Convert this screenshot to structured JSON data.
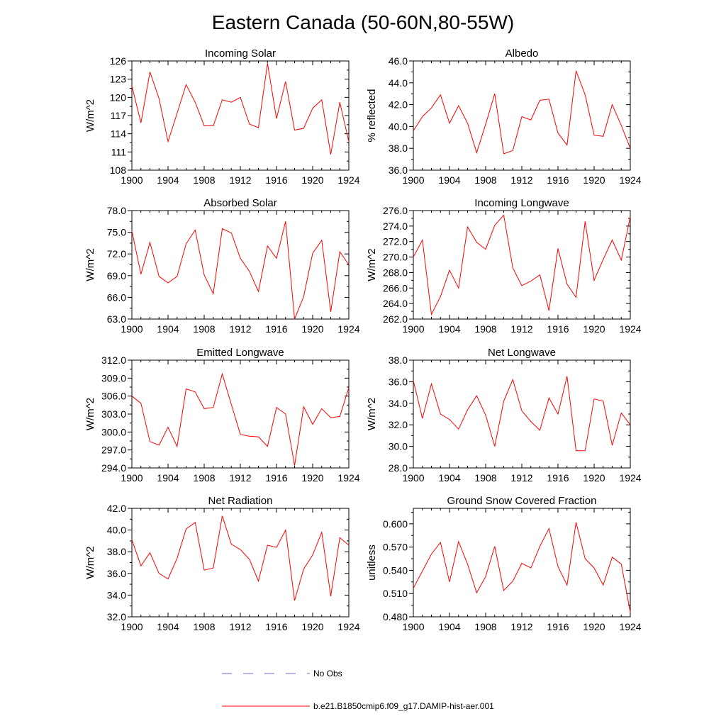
{
  "figure": {
    "title": "Eastern Canada (50-60N,80-55W)"
  },
  "legend": {
    "obs_label": "No Obs",
    "obs_color": "#6b6bd6",
    "model_label": "b.e21.B1850cmip6.f09_g17.DAMIP-hist-aer.001",
    "model_color": "#ff0000"
  },
  "chart_data": [
    {
      "type": "line",
      "title": "Incoming Solar",
      "xlabel": "",
      "ylabel": "W/m^2",
      "xlim": [
        1900,
        1924
      ],
      "ylim": [
        108,
        126
      ],
      "xticks": [
        "1900",
        "1904",
        "1908",
        "1912",
        "1916",
        "1920",
        "1924"
      ],
      "yticks": [
        "108",
        "111",
        "114",
        "117",
        "120",
        "123",
        "126"
      ],
      "x": [
        1900,
        1901,
        1902,
        1903,
        1904,
        1905,
        1906,
        1907,
        1908,
        1909,
        1910,
        1911,
        1912,
        1913,
        1914,
        1915,
        1916,
        1917,
        1918,
        1919,
        1920,
        1921,
        1922,
        1923,
        1924
      ],
      "series": [
        {
          "values": [
            121.9,
            115.8,
            124.2,
            119.8,
            112.7,
            117.4,
            122.1,
            119.2,
            115.3,
            115.3,
            119.6,
            119.2,
            120.0,
            115.6,
            115.0,
            125.6,
            116.5,
            122.6,
            114.6,
            114.9,
            118.2,
            119.6,
            110.6,
            119.2,
            112.7
          ]
        }
      ]
    },
    {
      "type": "line",
      "title": "Albedo",
      "xlabel": "",
      "ylabel": "% reflected",
      "xlim": [
        1900,
        1924
      ],
      "ylim": [
        36,
        46
      ],
      "xticks": [
        "1900",
        "1904",
        "1908",
        "1912",
        "1916",
        "1920",
        "1924"
      ],
      "yticks": [
        "36.0",
        "38.0",
        "40.0",
        "42.0",
        "44.0",
        "46.0"
      ],
      "x": [
        1900,
        1901,
        1902,
        1903,
        1904,
        1905,
        1906,
        1907,
        1908,
        1909,
        1910,
        1911,
        1912,
        1913,
        1914,
        1915,
        1916,
        1917,
        1918,
        1919,
        1920,
        1921,
        1922,
        1923,
        1924
      ],
      "series": [
        {
          "values": [
            39.6,
            40.9,
            41.7,
            42.9,
            40.3,
            41.9,
            40.3,
            37.6,
            40.2,
            43.0,
            37.5,
            37.8,
            40.9,
            40.6,
            42.4,
            42.5,
            39.4,
            38.3,
            45.1,
            42.9,
            39.2,
            39.1,
            42.0,
            40.1,
            38.0
          ]
        }
      ]
    },
    {
      "type": "line",
      "title": "Absorbed Solar",
      "xlabel": "",
      "ylabel": "W/m^2",
      "xlim": [
        1900,
        1924
      ],
      "ylim": [
        63,
        78
      ],
      "xticks": [
        "1900",
        "1904",
        "1908",
        "1912",
        "1916",
        "1920",
        "1924"
      ],
      "yticks": [
        "63.0",
        "66.0",
        "69.0",
        "72.0",
        "75.0",
        "78.0"
      ],
      "x": [
        1900,
        1901,
        1902,
        1903,
        1904,
        1905,
        1906,
        1907,
        1908,
        1909,
        1910,
        1911,
        1912,
        1913,
        1914,
        1915,
        1916,
        1917,
        1918,
        1919,
        1920,
        1921,
        1922,
        1923,
        1924
      ],
      "series": [
        {
          "values": [
            75.2,
            69.2,
            73.6,
            68.9,
            68.0,
            68.9,
            73.4,
            75.3,
            69.1,
            66.5,
            75.5,
            74.9,
            71.4,
            69.6,
            66.8,
            73.1,
            71.4,
            76.5,
            63.0,
            66.1,
            72.1,
            73.9,
            64.0,
            72.3,
            70.5
          ]
        }
      ]
    },
    {
      "type": "line",
      "title": "Incoming Longwave",
      "xlabel": "",
      "ylabel": "W/m^2",
      "xlim": [
        1900,
        1924
      ],
      "ylim": [
        262,
        276
      ],
      "xticks": [
        "1900",
        "1904",
        "1908",
        "1912",
        "1916",
        "1920",
        "1924"
      ],
      "yticks": [
        "262.0",
        "264.0",
        "266.0",
        "268.0",
        "270.0",
        "272.0",
        "274.0",
        "276.0"
      ],
      "x": [
        1900,
        1901,
        1902,
        1903,
        1904,
        1905,
        1906,
        1907,
        1908,
        1909,
        1910,
        1911,
        1912,
        1913,
        1914,
        1915,
        1916,
        1917,
        1918,
        1919,
        1920,
        1921,
        1922,
        1923,
        1924
      ],
      "series": [
        {
          "values": [
            270.0,
            272.2,
            262.6,
            264.9,
            268.3,
            266.0,
            273.9,
            271.9,
            271.0,
            274.1,
            275.4,
            268.6,
            266.3,
            266.9,
            267.7,
            263.1,
            271.1,
            266.5,
            264.8,
            274.6,
            267.0,
            269.7,
            272.2,
            269.6,
            275.2
          ]
        }
      ]
    },
    {
      "type": "line",
      "title": "Emitted Longwave",
      "xlabel": "",
      "ylabel": "W/m^2",
      "xlim": [
        1900,
        1924
      ],
      "ylim": [
        294,
        312
      ],
      "xticks": [
        "1900",
        "1904",
        "1908",
        "1912",
        "1916",
        "1920",
        "1924"
      ],
      "yticks": [
        "294.0",
        "297.0",
        "300.0",
        "303.0",
        "306.0",
        "309.0",
        "312.0"
      ],
      "x": [
        1900,
        1901,
        1902,
        1903,
        1904,
        1905,
        1906,
        1907,
        1908,
        1909,
        1910,
        1911,
        1912,
        1913,
        1914,
        1915,
        1916,
        1917,
        1918,
        1919,
        1920,
        1921,
        1922,
        1923,
        1924
      ],
      "series": [
        {
          "values": [
            306.0,
            304.8,
            298.4,
            297.8,
            300.8,
            297.6,
            307.2,
            306.7,
            303.9,
            304.1,
            309.7,
            304.6,
            299.6,
            299.3,
            299.2,
            297.6,
            304.1,
            303.0,
            294.4,
            304.2,
            301.3,
            303.9,
            302.4,
            302.6,
            307.4
          ]
        }
      ]
    },
    {
      "type": "line",
      "title": "Net Longwave",
      "xlabel": "",
      "ylabel": "W/m^2",
      "xlim": [
        1900,
        1924
      ],
      "ylim": [
        28,
        38
      ],
      "xticks": [
        "1900",
        "1904",
        "1908",
        "1912",
        "1916",
        "1920",
        "1924"
      ],
      "yticks": [
        "28.0",
        "30.0",
        "32.0",
        "34.0",
        "36.0",
        "38.0"
      ],
      "x": [
        1900,
        1901,
        1902,
        1903,
        1904,
        1905,
        1906,
        1907,
        1908,
        1909,
        1910,
        1911,
        1912,
        1913,
        1914,
        1915,
        1916,
        1917,
        1918,
        1919,
        1920,
        1921,
        1922,
        1923,
        1924
      ],
      "series": [
        {
          "values": [
            36.1,
            32.6,
            35.8,
            33.0,
            32.5,
            31.6,
            33.4,
            34.7,
            32.9,
            30.0,
            34.2,
            36.2,
            33.3,
            32.3,
            31.5,
            34.5,
            33.0,
            36.5,
            29.6,
            29.6,
            34.4,
            34.2,
            30.1,
            33.1,
            32.0
          ]
        }
      ]
    },
    {
      "type": "line",
      "title": "Net Radiation",
      "xlabel": "",
      "ylabel": "W/m^2",
      "xlim": [
        1900,
        1924
      ],
      "ylim": [
        32,
        42
      ],
      "xticks": [
        "1900",
        "1904",
        "1908",
        "1912",
        "1916",
        "1920",
        "1924"
      ],
      "yticks": [
        "32.0",
        "34.0",
        "36.0",
        "38.0",
        "40.0",
        "42.0"
      ],
      "x": [
        1900,
        1901,
        1902,
        1903,
        1904,
        1905,
        1906,
        1907,
        1908,
        1909,
        1910,
        1911,
        1912,
        1913,
        1914,
        1915,
        1916,
        1917,
        1918,
        1919,
        1920,
        1921,
        1922,
        1923,
        1924
      ],
      "series": [
        {
          "values": [
            39.1,
            36.7,
            37.9,
            36.0,
            35.5,
            37.4,
            40.1,
            40.7,
            36.3,
            36.5,
            41.3,
            38.7,
            38.2,
            37.3,
            35.3,
            38.6,
            38.4,
            40.0,
            33.5,
            36.4,
            37.7,
            39.8,
            33.9,
            39.3,
            38.6
          ]
        }
      ]
    },
    {
      "type": "line",
      "title": "Ground Snow Covered Fraction",
      "xlabel": "",
      "ylabel": "unitless",
      "xlim": [
        1900,
        1924
      ],
      "ylim": [
        0.48,
        0.62
      ],
      "xticks": [
        "1900",
        "1904",
        "1908",
        "1912",
        "1916",
        "1920",
        "1924"
      ],
      "yticks": [
        "0.480",
        "0.510",
        "0.540",
        "0.570",
        "0.600"
      ],
      "x": [
        1900,
        1901,
        1902,
        1903,
        1904,
        1905,
        1906,
        1907,
        1908,
        1909,
        1910,
        1911,
        1912,
        1913,
        1914,
        1915,
        1916,
        1917,
        1918,
        1919,
        1920,
        1921,
        1922,
        1923,
        1924
      ],
      "series": [
        {
          "values": [
            0.517,
            0.539,
            0.561,
            0.576,
            0.525,
            0.577,
            0.548,
            0.511,
            0.532,
            0.571,
            0.514,
            0.526,
            0.549,
            0.543,
            0.571,
            0.594,
            0.545,
            0.521,
            0.602,
            0.555,
            0.543,
            0.521,
            0.557,
            0.548,
            0.486
          ]
        }
      ]
    }
  ]
}
